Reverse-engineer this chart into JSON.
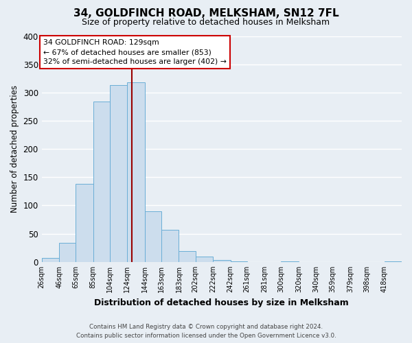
{
  "title": "34, GOLDFINCH ROAD, MELKSHAM, SN12 7FL",
  "subtitle": "Size of property relative to detached houses in Melksham",
  "xlabel": "Distribution of detached houses by size in Melksham",
  "ylabel": "Number of detached properties",
  "bin_labels": [
    "26sqm",
    "46sqm",
    "65sqm",
    "85sqm",
    "104sqm",
    "124sqm",
    "144sqm",
    "163sqm",
    "183sqm",
    "202sqm",
    "222sqm",
    "242sqm",
    "261sqm",
    "281sqm",
    "300sqm",
    "320sqm",
    "340sqm",
    "359sqm",
    "379sqm",
    "398sqm",
    "418sqm"
  ],
  "bar_heights": [
    7,
    34,
    138,
    284,
    313,
    318,
    90,
    57,
    19,
    10,
    3,
    1,
    0,
    0,
    1,
    0,
    0,
    0,
    0,
    0,
    1
  ],
  "bar_color": "#ccdded",
  "bar_edge_color": "#6aaed6",
  "vline_x": 129,
  "vline_color": "#990000",
  "annotation_title": "34 GOLDFINCH ROAD: 129sqm",
  "annotation_line1": "← 67% of detached houses are smaller (853)",
  "annotation_line2": "32% of semi-detached houses are larger (402) →",
  "annotation_box_facecolor": "#ffffff",
  "annotation_box_edgecolor": "#cc0000",
  "ylim": [
    0,
    400
  ],
  "yticks": [
    0,
    50,
    100,
    150,
    200,
    250,
    300,
    350,
    400
  ],
  "footer_line1": "Contains HM Land Registry data © Crown copyright and database right 2024.",
  "footer_line2": "Contains public sector information licensed under the Open Government Licence v3.0.",
  "bg_color": "#e8eef4",
  "plot_bg_color": "#e8eef4",
  "grid_color": "#ffffff",
  "title_fontsize": 11,
  "subtitle_fontsize": 9
}
